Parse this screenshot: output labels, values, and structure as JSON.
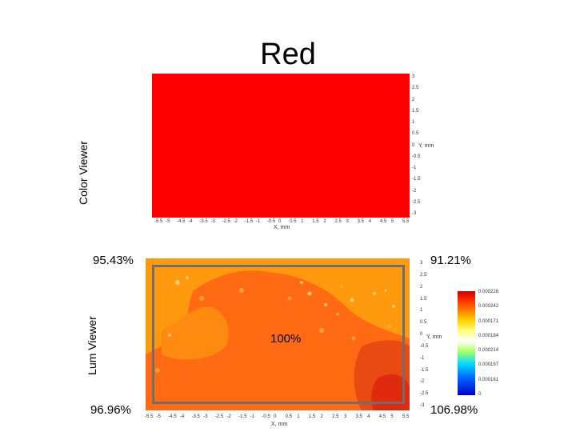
{
  "title": "Red",
  "color_viewer": {
    "label": "Color Viewer",
    "x_axis_label": "X, mm",
    "y_axis_label": "Y, mm",
    "x_ticks": [
      "-5.5",
      "-5",
      "-4.5",
      "-4",
      "-3.5",
      "-3",
      "-2.5",
      "-2",
      "-1.5",
      "-1",
      "-0.5",
      "0",
      "0.5",
      "1",
      "1.5",
      "2",
      "2.5",
      "3",
      "3.5",
      "4",
      "4.5",
      "5",
      "5.5"
    ],
    "y_ticks": [
      "3",
      "2.5",
      "2",
      "1.5",
      "1",
      "0.5",
      "0",
      "-0.5",
      "-1",
      "-1.5",
      "-2",
      "-2.5",
      "-3"
    ],
    "fill_color": "#ff0000"
  },
  "lum_viewer": {
    "label": "Lum Viewer",
    "x_axis_label": "X, mm",
    "y_axis_label": "Y, mm",
    "x_ticks": [
      "-5.5",
      "-5",
      "-4.5",
      "-4",
      "-3.5",
      "-3",
      "-2.5",
      "-2",
      "-1.5",
      "-1",
      "-0.5",
      "0",
      "0.5",
      "1",
      "1.5",
      "2",
      "2.5",
      "3",
      "3.5",
      "4",
      "4.5",
      "5",
      "5.5"
    ],
    "y_ticks": [
      "3",
      "2.5",
      "2",
      "1.5",
      "1",
      "0.5",
      "0",
      "-0.5",
      "-1",
      "-1.5",
      "-2",
      "-2.5",
      "-3"
    ],
    "colorbar_labels": [
      "0.000228",
      "0.000242",
      "0.000171",
      "0.000184",
      "0.000214",
      "0.000197",
      "0.000161",
      "0"
    ],
    "colors": {
      "light": "#ff9a0e",
      "mid": "#ff6a12",
      "dark": "#e02a10",
      "highlight": "#ffd27a"
    }
  },
  "percentages": {
    "top_left": "95.43%",
    "top_right": "91.21%",
    "center": "100%",
    "bottom_left": "96.96%",
    "bottom_right": "106.98%"
  }
}
